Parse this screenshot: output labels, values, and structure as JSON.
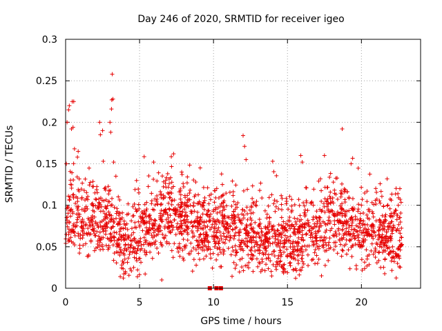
{
  "chart_data": {
    "type": "scatter",
    "title": "Day 246 of 2020, SRMTID for receiver igeo",
    "xlabel": "GPS time / hours",
    "ylabel": "SRMTID / TECUs",
    "xlim": [
      0,
      24
    ],
    "ylim": [
      0,
      0.3
    ],
    "x_ticks": [
      0,
      5,
      10,
      15,
      20
    ],
    "x_tick_labels": [
      "0",
      "5",
      "10",
      "15",
      "20"
    ],
    "y_ticks": [
      0,
      0.05,
      0.1,
      0.15,
      0.2,
      0.25,
      0.3
    ],
    "y_tick_labels": [
      "0",
      "0.05",
      "0.1",
      "0.15",
      "0.2",
      "0.25",
      "0.3"
    ],
    "grid": true,
    "marker": "+",
    "color": "#e60000",
    "x_range_hours": [
      0,
      22.75
    ],
    "baseline_trend": [
      [
        0,
        0.085
      ],
      [
        0.5,
        0.09
      ],
      [
        1,
        0.075
      ],
      [
        1.5,
        0.088
      ],
      [
        2,
        0.085
      ],
      [
        2.5,
        0.075
      ],
      [
        3,
        0.08
      ],
      [
        3.5,
        0.065
      ],
      [
        4,
        0.055
      ],
      [
        4.5,
        0.055
      ],
      [
        5,
        0.065
      ],
      [
        5.5,
        0.075
      ],
      [
        6,
        0.08
      ],
      [
        6.5,
        0.085
      ],
      [
        7,
        0.09
      ],
      [
        7.5,
        0.09
      ],
      [
        8,
        0.085
      ],
      [
        8.5,
        0.08
      ],
      [
        9,
        0.075
      ],
      [
        9.5,
        0.07
      ],
      [
        10,
        0.075
      ],
      [
        10.5,
        0.07
      ],
      [
        11,
        0.07
      ],
      [
        11.5,
        0.07
      ],
      [
        12,
        0.065
      ],
      [
        12.5,
        0.06
      ],
      [
        13,
        0.058
      ],
      [
        13.5,
        0.058
      ],
      [
        14,
        0.06
      ],
      [
        14.5,
        0.062
      ],
      [
        15,
        0.06
      ],
      [
        15.5,
        0.06
      ],
      [
        16,
        0.06
      ],
      [
        16.5,
        0.062
      ],
      [
        17,
        0.07
      ],
      [
        17.5,
        0.08
      ],
      [
        18,
        0.085
      ],
      [
        18.5,
        0.085
      ],
      [
        19,
        0.075
      ],
      [
        19.5,
        0.07
      ],
      [
        20,
        0.065
      ],
      [
        20.5,
        0.065
      ],
      [
        21,
        0.07
      ],
      [
        21.5,
        0.065
      ],
      [
        22,
        0.06
      ],
      [
        22.75,
        0.065
      ]
    ],
    "scatter_spread": 0.022,
    "point_count": 2100,
    "outliers": [
      [
        0.05,
        0.15
      ],
      [
        0.1,
        0.2
      ],
      [
        0.2,
        0.215
      ],
      [
        0.25,
        0.22
      ],
      [
        0.45,
        0.225
      ],
      [
        0.55,
        0.225
      ],
      [
        0.4,
        0.192
      ],
      [
        0.5,
        0.194
      ],
      [
        0.6,
        0.168
      ],
      [
        0.85,
        0.165
      ],
      [
        0.8,
        0.158
      ],
      [
        2.3,
        0.2
      ],
      [
        2.35,
        0.185
      ],
      [
        2.5,
        0.19
      ],
      [
        3.0,
        0.2
      ],
      [
        3.05,
        0.188
      ],
      [
        3.1,
        0.216
      ],
      [
        3.12,
        0.227
      ],
      [
        3.2,
        0.228
      ],
      [
        3.15,
        0.258
      ],
      [
        3.25,
        0.152
      ],
      [
        3.4,
        0.135
      ],
      [
        5.95,
        0.152
      ],
      [
        7.3,
        0.162
      ],
      [
        6.5,
        0.01
      ],
      [
        9.1,
        0.145
      ],
      [
        12.0,
        0.184
      ],
      [
        12.1,
        0.171
      ],
      [
        12.2,
        0.155
      ],
      [
        14.0,
        0.153
      ],
      [
        15.9,
        0.16
      ],
      [
        16.0,
        0.152
      ],
      [
        17.3,
        0.015
      ],
      [
        17.5,
        0.16
      ],
      [
        18.7,
        0.192
      ],
      [
        19.3,
        0.15
      ],
      [
        22.6,
        0.12
      ],
      [
        13.2,
        0.02
      ],
      [
        4.6,
        0.025
      ],
      [
        21.3,
        0.025
      ],
      [
        3.8,
        0.028
      ],
      [
        15.4,
        0.022
      ],
      [
        8.8,
        0.128
      ],
      [
        10.6,
        0.125
      ],
      [
        6.9,
        0.138
      ]
    ],
    "zero_markers": [
      9.75,
      10.2,
      10.5
    ]
  }
}
